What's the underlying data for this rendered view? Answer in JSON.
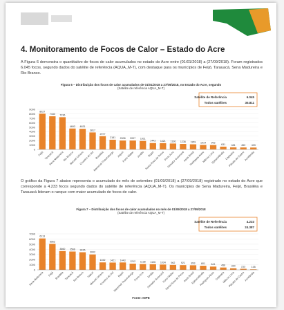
{
  "header": {
    "title": "4. Monitoramento de Focos de Calor – Estado do Acre"
  },
  "paragraphs": [
    "A Figura 6 demonstra o quantitativo de focos de calor acumulados no estado do Acre entre (01/01/2018) a (27/09/2018). Foram registrados 6.045 focos, segundo dados do satélite de referência (AQUA_M-T), com destaque para os municípios de Feijó, Tarauacá, Sena Madureira e Rio Branco.",
    "O gráfico da Figura 7 abaixo representa o acumulado do mês de setembro (01/09/2018) a (27/09/2018) registrado no estado do Acre que corresponde a 4.233 focos segundo dados do satélite de referência (AQUA_M-T). Os municípios de Sena Madureira, Feijó, Brasiléia e Tarauacá lideram o ranque com maior acumulado de focos de calor."
  ],
  "chart_data": [
    {
      "type": "bar",
      "title": "Figura 6 – Distribuição dos focos de calor acumulados de 01/01/2018 a 27/09/2018, no Estado do Acre, segundo",
      "subtitle": "(Satélite de referência AQUA_M-T)",
      "box": [
        [
          "Satélite de Referência",
          "6.045"
        ],
        [
          "Todos satélites",
          "35.811"
        ]
      ],
      "categories": [
        "Feijó",
        "Tarauacá",
        "Sena Madureira",
        "Rio Branco",
        "Manoel Urbano",
        "Cruzeiro do Sul",
        "Brasiléia",
        "Marechal Thaumaturgo",
        "Xapuri",
        "Porto Walter",
        "Jordão",
        "Bujari",
        "Santa Rosa do Purus",
        "Porto Acre",
        "Senador Guiomard",
        "Assis Brasil",
        "Rodrigues Alves",
        "Mâncio Lima",
        "Epitaciolândia",
        "Capixaba",
        "Plácido de Castro",
        "Acrelândia"
      ],
      "values": [
        8027,
        7440,
        7236,
        4693,
        4631,
        3817,
        2977,
        2181,
        2008,
        2007,
        1911,
        1443,
        1421,
        1336,
        1236,
        1159,
        1014,
        993,
        631,
        481,
        453,
        433
      ],
      "color": "#e8832a",
      "ylim": [
        0,
        9000
      ],
      "yticks": [
        0,
        1000,
        2000,
        3000,
        4000,
        5000,
        6000,
        7000,
        8000,
        9000
      ]
    },
    {
      "type": "bar",
      "title": "Figura 7 – Distribuição dos focos de calor acumulados no mês de 01/09/2018 a 27/09/2018",
      "subtitle": "(Satélite de referência AQUA_M-T)",
      "box": [
        [
          "Satélite de Referência",
          "4.233"
        ],
        [
          "Todos satélites",
          "24.387"
        ]
      ],
      "categories": [
        "Sena Madureira",
        "Feijó",
        "Brasiléia",
        "Tarauacá",
        "Rio Branco",
        "Xapuri",
        "Manoel Urbano",
        "Cruzeiro do Sul",
        "Bujari",
        "Marechal Thaumaturgo",
        "Porto Acre",
        "Jordão",
        "Senador Guiomard",
        "Porto Walter",
        "Santa Rosa do Purus",
        "Assis Brasil",
        "Epitaciolândia",
        "Rodrigues Alves",
        "Capixaba",
        "Mâncio Lima",
        "Plácido de Castro",
        "Acrelândia"
      ],
      "values": [
        6113,
        5062,
        3660,
        3566,
        3426,
        3002,
        1452,
        1421,
        1443,
        1212,
        1138,
        1106,
        1034,
        962,
        921,
        893,
        801,
        641,
        456,
        320,
        213,
        105
      ],
      "color": "#e8832a",
      "ylim": [
        0,
        7000
      ],
      "yticks": [
        0,
        1000,
        2000,
        3000,
        4000,
        5000,
        6000,
        7000
      ]
    }
  ],
  "footer": "Fonte: INPE"
}
